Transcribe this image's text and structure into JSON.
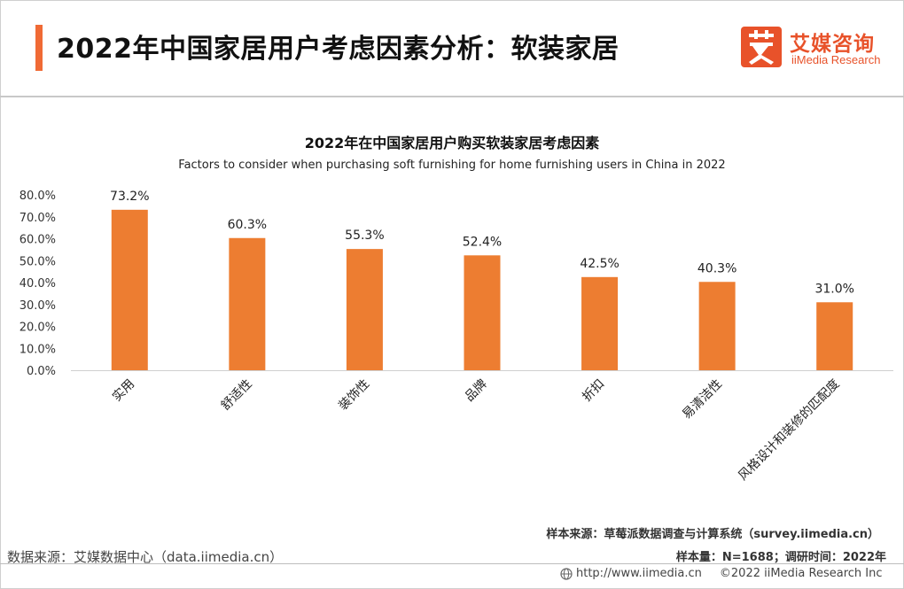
{
  "header": {
    "title": "2022年中国家居用户考虑因素分析：软装家居",
    "logo_cn": "艾媒咨询",
    "logo_en": "iiMedia Research",
    "accent_color": "#f06a35"
  },
  "chart_data": {
    "type": "bar",
    "title": "2022年在中国家居用户购买软装家居考虑因素",
    "subtitle": "Factors to consider when purchasing soft furnishing for home furnishing users in China in 2022",
    "categories": [
      "实用",
      "舒适性",
      "装饰性",
      "品牌",
      "折扣",
      "易清洁性",
      "风格设计和装修的匹配度"
    ],
    "values": [
      73.2,
      60.3,
      55.3,
      52.4,
      42.5,
      40.3,
      31.0
    ],
    "data_labels": [
      "73.2%",
      "60.3%",
      "55.3%",
      "52.4%",
      "42.5%",
      "40.3%",
      "31.0%"
    ],
    "y_ticks": [
      "0.0%",
      "10.0%",
      "20.0%",
      "30.0%",
      "40.0%",
      "50.0%",
      "60.0%",
      "70.0%",
      "80.0%"
    ],
    "ylim": [
      0,
      80
    ],
    "bar_color": "#ed7d31",
    "grid": false,
    "legend": "none",
    "xlabel": "",
    "ylabel": ""
  },
  "footer": {
    "sample_source": "样本来源：草莓派数据调查与计算系统（survey.iimedia.cn）",
    "data_source": "数据来源：艾媒数据中心（data.iimedia.cn）",
    "sample_size": "样本量：N=1688；调研时间：2022年",
    "url": "http://www.iimedia.cn",
    "copyright": "©2022  iiMedia Research  Inc"
  }
}
